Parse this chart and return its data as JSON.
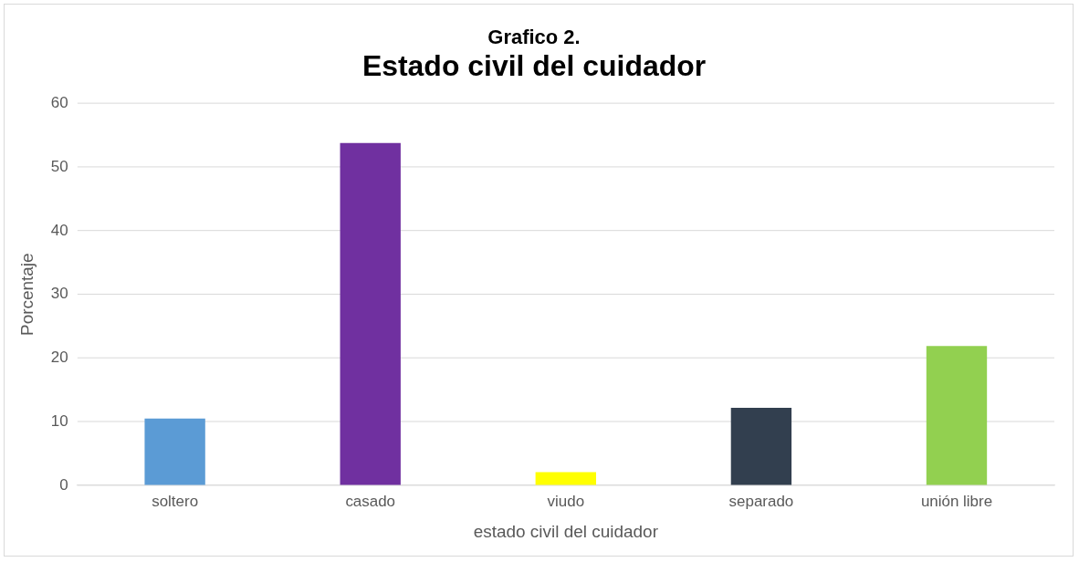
{
  "chart_data": {
    "type": "bar",
    "title": "Grafico 2.",
    "subtitle": "Estado civil del cuidador",
    "xlabel": "estado civil del cuidador",
    "ylabel": "Porcentaje",
    "categories": [
      "soltero",
      "casado",
      "viudo",
      "separado",
      "unión libre"
    ],
    "values": [
      10.5,
      53.8,
      2.1,
      12.2,
      21.9
    ],
    "colors": [
      "#5b9bd5",
      "#7030a0",
      "#ffff00",
      "#323f4f",
      "#92d050"
    ],
    "ylim": [
      0,
      60
    ],
    "yticks": [
      0,
      10,
      20,
      30,
      40,
      50,
      60
    ],
    "grid": "y",
    "legend": false
  }
}
